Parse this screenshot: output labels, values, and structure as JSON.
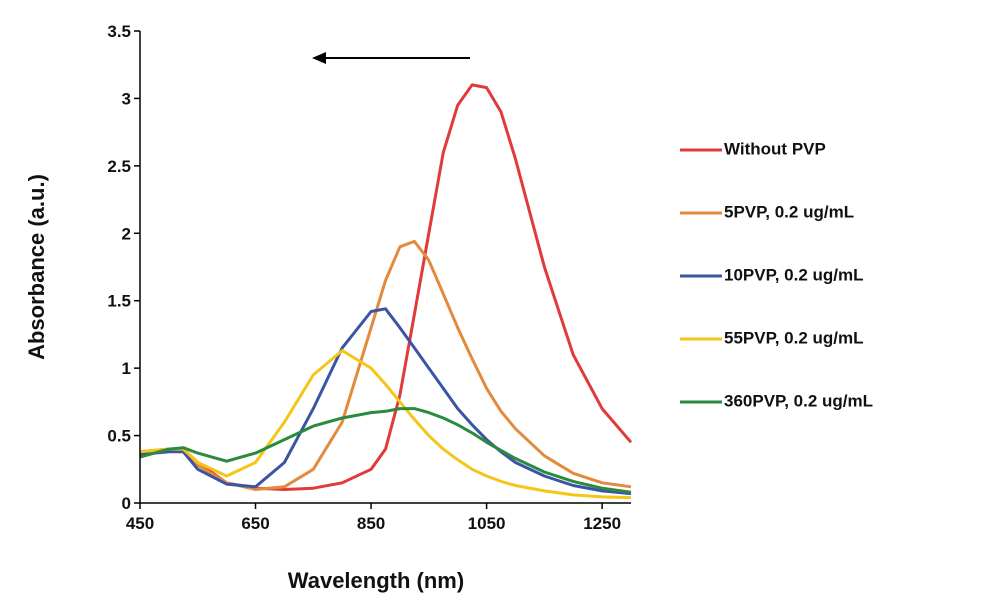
{
  "chart_data": {
    "type": "line",
    "x_label": "Wavelength (nm)",
    "y_label": "Absorbance (a.u.)",
    "x": [
      450,
      500,
      525,
      550,
      600,
      650,
      700,
      750,
      800,
      850,
      875,
      900,
      925,
      950,
      975,
      1000,
      1025,
      1050,
      1075,
      1100,
      1150,
      1200,
      1250,
      1300
    ],
    "series": [
      {
        "name": "Without PVP",
        "color": "#e03a3a",
        "values": [
          0.38,
          0.4,
          0.4,
          0.3,
          0.15,
          0.11,
          0.1,
          0.11,
          0.15,
          0.25,
          0.4,
          0.8,
          1.4,
          2.0,
          2.6,
          2.95,
          3.1,
          3.08,
          2.9,
          2.55,
          1.75,
          1.1,
          0.7,
          0.45
        ]
      },
      {
        "name": "5PVP, 0.2 ug/mL",
        "color": "#e38a3c",
        "values": [
          0.38,
          0.4,
          0.4,
          0.28,
          0.15,
          0.1,
          0.12,
          0.25,
          0.6,
          1.3,
          1.65,
          1.9,
          1.94,
          1.8,
          1.55,
          1.3,
          1.07,
          0.85,
          0.68,
          0.55,
          0.35,
          0.22,
          0.15,
          0.12
        ]
      },
      {
        "name": "10PVP, 0.2 ug/mL",
        "color": "#3a55a4",
        "values": [
          0.36,
          0.38,
          0.38,
          0.25,
          0.14,
          0.12,
          0.3,
          0.7,
          1.15,
          1.42,
          1.44,
          1.3,
          1.15,
          1.0,
          0.85,
          0.7,
          0.58,
          0.47,
          0.38,
          0.3,
          0.2,
          0.13,
          0.09,
          0.07
        ]
      },
      {
        "name": "55PVP, 0.2 ug/mL",
        "color": "#f5c518",
        "values": [
          0.38,
          0.4,
          0.4,
          0.3,
          0.2,
          0.3,
          0.6,
          0.95,
          1.13,
          1.0,
          0.88,
          0.75,
          0.62,
          0.5,
          0.4,
          0.32,
          0.25,
          0.2,
          0.16,
          0.13,
          0.09,
          0.06,
          0.045,
          0.04
        ]
      },
      {
        "name": "360PVP, 0.2 ug/mL",
        "color": "#2a8a3e",
        "values": [
          0.34,
          0.4,
          0.41,
          0.37,
          0.31,
          0.37,
          0.47,
          0.57,
          0.63,
          0.67,
          0.68,
          0.7,
          0.7,
          0.67,
          0.63,
          0.58,
          0.52,
          0.45,
          0.39,
          0.33,
          0.23,
          0.16,
          0.11,
          0.08
        ]
      }
    ],
    "xlim": [
      450,
      1300
    ],
    "xticks": [
      450,
      650,
      850,
      1050,
      1250
    ],
    "ylim": [
      0,
      3.5
    ],
    "yticks": [
      0,
      0.5,
      1,
      1.5,
      2,
      2.5,
      3,
      3.5
    ]
  }
}
